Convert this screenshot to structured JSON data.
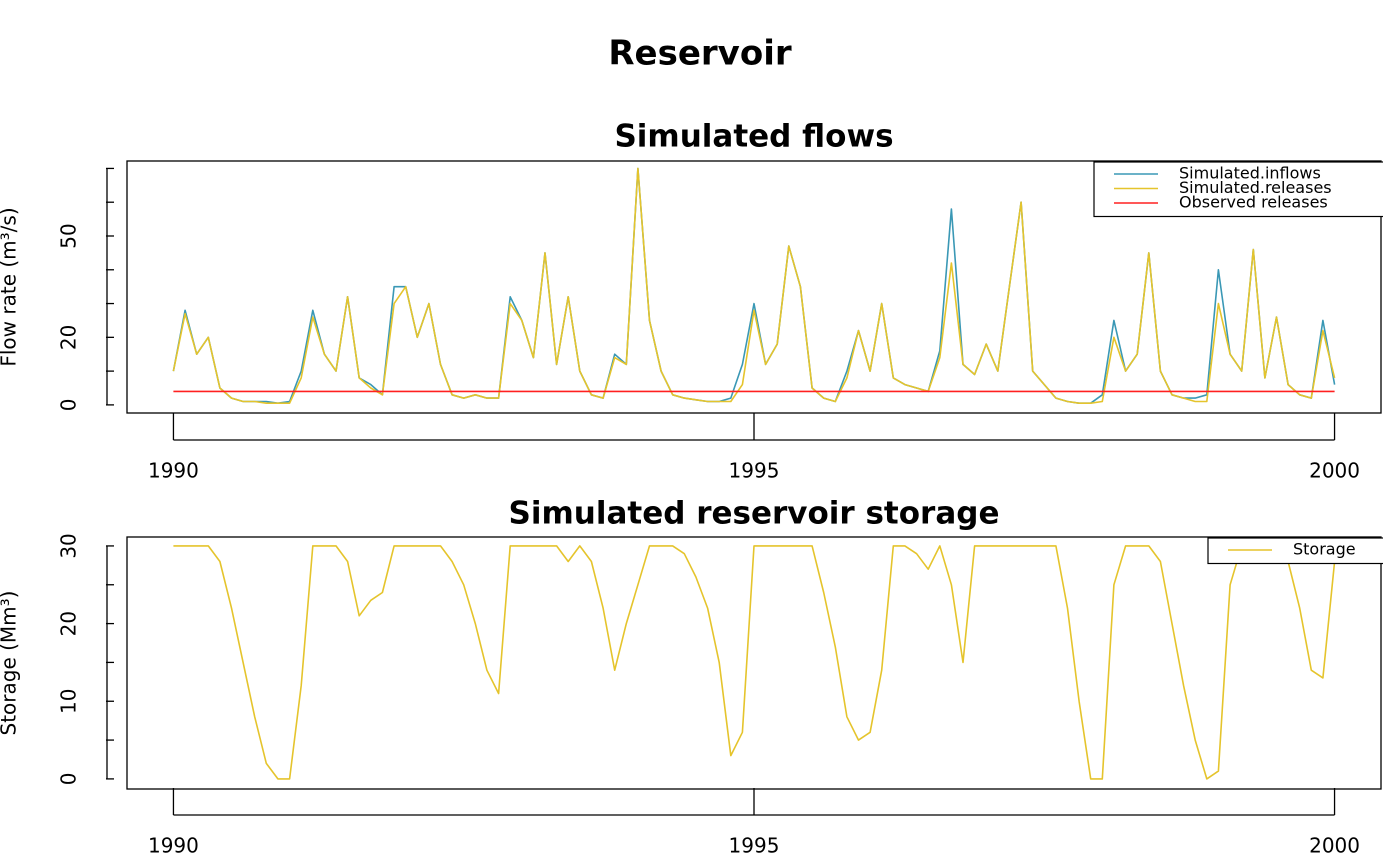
{
  "title": "Reservoir",
  "chart_data": [
    {
      "type": "line",
      "title": "Simulated flows",
      "ylabel": "Flow rate (m³/s)",
      "x": [
        1990,
        1990.1,
        1990.2,
        1990.3,
        1990.4,
        1990.5,
        1990.6,
        1990.7,
        1990.8,
        1990.9,
        1991,
        1991.1,
        1991.2,
        1991.3,
        1991.4,
        1991.5,
        1991.6,
        1991.7,
        1991.8,
        1991.9,
        1992,
        1992.1,
        1992.2,
        1992.3,
        1992.4,
        1992.5,
        1992.6,
        1992.7,
        1992.8,
        1992.9,
        1993,
        1993.1,
        1993.2,
        1993.3,
        1993.4,
        1993.5,
        1993.6,
        1993.7,
        1993.8,
        1993.9,
        1994,
        1994.1,
        1994.2,
        1994.3,
        1994.4,
        1994.5,
        1994.6,
        1994.7,
        1994.8,
        1994.9,
        1995,
        1995.1,
        1995.2,
        1995.3,
        1995.4,
        1995.5,
        1995.6,
        1995.7,
        1995.8,
        1995.9,
        1996,
        1996.1,
        1996.2,
        1996.3,
        1996.4,
        1996.5,
        1996.6,
        1996.7,
        1996.8,
        1996.9,
        1997,
        1997.1,
        1997.2,
        1997.3,
        1997.4,
        1997.5,
        1997.6,
        1997.7,
        1997.8,
        1997.9,
        1998,
        1998.1,
        1998.2,
        1998.3,
        1998.4,
        1998.5,
        1998.6,
        1998.7,
        1998.8,
        1998.9,
        1999,
        1999.1,
        1999.2,
        1999.3,
        1999.4,
        1999.5,
        1999.6,
        1999.7,
        1999.8,
        1999.9,
        2000
      ],
      "series": [
        {
          "name": "Simulated.inflows",
          "color": "#3a98b5",
          "values": [
            10,
            28,
            15,
            20,
            5,
            2,
            1,
            1,
            1,
            0.5,
            1,
            10,
            28,
            15,
            10,
            32,
            8,
            6,
            3,
            35,
            35,
            20,
            30,
            12,
            3,
            2,
            3,
            2,
            2,
            32,
            25,
            14,
            45,
            12,
            32,
            10,
            3,
            2,
            15,
            12,
            70,
            25,
            10,
            3,
            2,
            1.5,
            1,
            1,
            2,
            12,
            30,
            12,
            18,
            47,
            35,
            5,
            2,
            1,
            10,
            22,
            10,
            30,
            8,
            6,
            5,
            4,
            16,
            58,
            12,
            9,
            18,
            10,
            35,
            60,
            10,
            6,
            2,
            1,
            0.5,
            0.5,
            3,
            25,
            10,
            15,
            45,
            10,
            3,
            2,
            2,
            3,
            40,
            15,
            10,
            46,
            8,
            26,
            6,
            3,
            2,
            25,
            6
          ]
        },
        {
          "name": "Simulated.releases",
          "color": "#e5c42c",
          "values": [
            10,
            27,
            15,
            20,
            5,
            2,
            1,
            1,
            0.5,
            0.5,
            0.5,
            8,
            26,
            15,
            10,
            32,
            8,
            5,
            3,
            30,
            35,
            20,
            30,
            12,
            3,
            2,
            3,
            2,
            2,
            30,
            25,
            14,
            45,
            12,
            32,
            10,
            3,
            2,
            14,
            12,
            70,
            25,
            10,
            3,
            2,
            1.5,
            1,
            1,
            1,
            6,
            28,
            12,
            18,
            47,
            35,
            5,
            2,
            1,
            8,
            22,
            10,
            30,
            8,
            6,
            5,
            4,
            14,
            42,
            12,
            9,
            18,
            10,
            35,
            60,
            10,
            6,
            2,
            1,
            0.5,
            0.5,
            1,
            20,
            10,
            15,
            45,
            10,
            3,
            2,
            1,
            1,
            30,
            15,
            10,
            46,
            8,
            26,
            6,
            3,
            2,
            22,
            8
          ]
        },
        {
          "name": "Observed releases",
          "color": "#ff2020",
          "x": [
            1990,
            2000
          ],
          "values": [
            4,
            4
          ]
        }
      ],
      "xlim": [
        1989.6,
        2000.4
      ],
      "xticks": [
        1990,
        1995,
        2000
      ],
      "ylim": [
        -2.4,
        72.2
      ],
      "yticks": [
        0,
        20,
        50
      ],
      "yminor_ticks": [
        10,
        30,
        40,
        60,
        70
      ],
      "legend": "topright"
    },
    {
      "type": "line",
      "title": "Simulated reservoir storage",
      "ylabel": "Storage (Mm³)",
      "x": [
        1990,
        1990.1,
        1990.2,
        1990.3,
        1990.4,
        1990.5,
        1990.6,
        1990.7,
        1990.8,
        1990.9,
        1991,
        1991.1,
        1991.2,
        1991.3,
        1991.4,
        1991.5,
        1991.6,
        1991.7,
        1991.8,
        1991.9,
        1992,
        1992.1,
        1992.2,
        1992.3,
        1992.4,
        1992.5,
        1992.6,
        1992.7,
        1992.8,
        1992.9,
        1993,
        1993.1,
        1993.2,
        1993.3,
        1993.4,
        1993.5,
        1993.6,
        1993.7,
        1993.8,
        1993.9,
        1994,
        1994.1,
        1994.2,
        1994.3,
        1994.4,
        1994.5,
        1994.6,
        1994.7,
        1994.8,
        1994.9,
        1995,
        1995.1,
        1995.2,
        1995.3,
        1995.4,
        1995.5,
        1995.6,
        1995.7,
        1995.8,
        1995.9,
        1996,
        1996.1,
        1996.2,
        1996.3,
        1996.4,
        1996.5,
        1996.6,
        1996.7,
        1996.8,
        1996.9,
        1997,
        1997.1,
        1997.2,
        1997.3,
        1997.4,
        1997.5,
        1997.6,
        1997.7,
        1997.8,
        1997.9,
        1998,
        1998.1,
        1998.2,
        1998.3,
        1998.4,
        1998.5,
        1998.6,
        1998.7,
        1998.8,
        1998.9,
        1999,
        1999.1,
        1999.2,
        1999.3,
        1999.4,
        1999.5,
        1999.6,
        1999.7,
        1999.8,
        1999.9,
        2000
      ],
      "series": [
        {
          "name": "Storage",
          "color": "#e5c42c",
          "values": [
            30,
            30,
            30,
            30,
            28,
            22,
            15,
            8,
            2,
            0,
            0,
            12,
            30,
            30,
            30,
            28,
            21,
            23,
            24,
            30,
            30,
            30,
            30,
            30,
            28,
            25,
            20,
            14,
            11,
            30,
            30,
            30,
            30,
            30,
            28,
            30,
            28,
            22,
            14,
            20,
            25,
            30,
            30,
            30,
            29,
            26,
            22,
            15,
            3,
            6,
            30,
            30,
            30,
            30,
            30,
            30,
            24,
            17,
            8,
            5,
            6,
            14,
            30,
            30,
            29,
            27,
            30,
            25,
            15,
            30,
            30,
            30,
            30,
            30,
            30,
            30,
            30,
            22,
            10,
            0,
            0,
            25,
            30,
            30,
            30,
            28,
            20,
            12,
            5,
            0,
            1,
            25,
            30,
            30,
            30,
            30,
            28,
            22,
            14,
            13,
            28
          ]
        }
      ],
      "xlim": [
        1989.6,
        2000.4
      ],
      "xticks": [
        1990,
        1995,
        2000
      ],
      "ylim": [
        -1.3,
        31.15
      ],
      "yticks": [
        0,
        10,
        20,
        30
      ],
      "yminor_ticks": [
        5,
        15,
        25
      ],
      "legend": "topright"
    }
  ]
}
